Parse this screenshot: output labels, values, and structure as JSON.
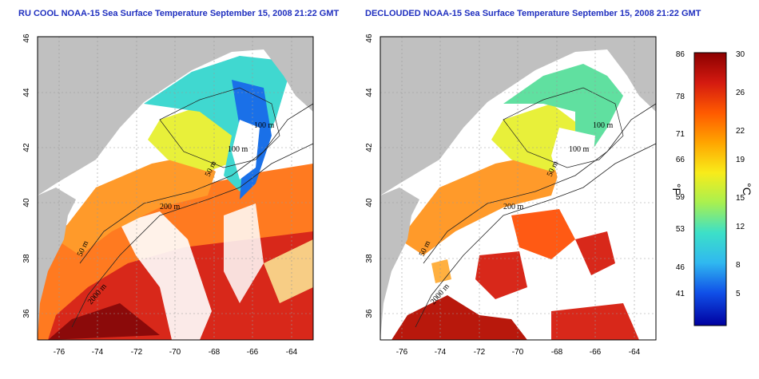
{
  "maps": [
    {
      "title": "RU COOL NOAA-15 Sea Surface Temperature September 15, 2008 21:22 GMT",
      "x_ticks": [
        "-76",
        "-74",
        "-72",
        "-70",
        "-68",
        "-66",
        "-64"
      ],
      "y_ticks": [
        "36",
        "38",
        "40",
        "42",
        "44",
        "46"
      ],
      "contour_labels": [
        "100 m",
        "100 m",
        "50 m",
        "200 m",
        "50 m",
        "2000 m"
      ]
    },
    {
      "title": "DECLOUDED NOAA-15 Sea Surface Temperature September 15, 2008 21:22 GMT",
      "x_ticks": [
        "-76",
        "-74",
        "-72",
        "-70",
        "-68",
        "-66",
        "-64"
      ],
      "y_ticks": [
        "36",
        "38",
        "40",
        "42",
        "44",
        "46"
      ],
      "contour_labels": [
        "100 m",
        "100 m",
        "50 m",
        "200 m",
        "50 m",
        "2000 m"
      ]
    }
  ],
  "colorbar": {
    "unit_left": "°F",
    "unit_right": "°C",
    "fahrenheit_ticks": [
      "86",
      "78",
      "71",
      "66",
      "59",
      "53",
      "46",
      "41"
    ],
    "celsius_ticks": [
      "30",
      "26",
      "22",
      "19",
      "15",
      "12",
      "8",
      "5"
    ],
    "colors": [
      "#8b0000",
      "#d41a10",
      "#ff5a00",
      "#ffa500",
      "#f8ec1a",
      "#a8f050",
      "#3ce0c8",
      "#30b8f0",
      "#1050e8",
      "#0000a0"
    ]
  },
  "colors": {
    "land": "#c0c0c0",
    "cloud": "#ffffff",
    "title": "#1f2fbf"
  }
}
